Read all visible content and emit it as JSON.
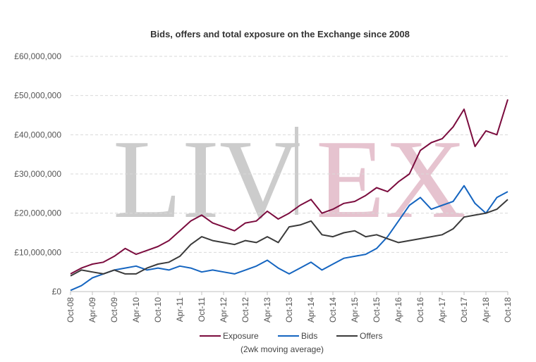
{
  "chart_data": {
    "type": "line",
    "title": "Bids, offers and total exposure on the Exchange since 2008",
    "note": "(2wk moving average)",
    "watermark": {
      "left": "LIV",
      "right": "EX"
    },
    "xlabel": "",
    "ylabel": "",
    "ylim": [
      0,
      60000000
    ],
    "y_ticks": [
      "£0",
      "£10,000,000",
      "£20,000,000",
      "£30,000,000",
      "£40,000,000",
      "£50,000,000",
      "£60,000,000"
    ],
    "x_ticks": [
      "Oct-08",
      "Apr-09",
      "Oct-09",
      "Apr-10",
      "Oct-10",
      "Apr-11",
      "Oct-11",
      "Apr-12",
      "Oct-12",
      "Apr-13",
      "Oct-13",
      "Apr-14",
      "Oct-14",
      "Apr-15",
      "Oct-15",
      "Apr-16",
      "Oct-16",
      "Apr-17",
      "Oct-17",
      "Apr-18",
      "Oct-18"
    ],
    "grid": true,
    "legend_position": "bottom",
    "x": [
      "Oct-08",
      "Jan-09",
      "Apr-09",
      "Jul-09",
      "Oct-09",
      "Jan-10",
      "Apr-10",
      "Jul-10",
      "Oct-10",
      "Jan-11",
      "Apr-11",
      "Jul-11",
      "Oct-11",
      "Jan-12",
      "Apr-12",
      "Jul-12",
      "Oct-12",
      "Jan-13",
      "Apr-13",
      "Jul-13",
      "Oct-13",
      "Jan-14",
      "Apr-14",
      "Jul-14",
      "Oct-14",
      "Jan-15",
      "Apr-15",
      "Jul-15",
      "Oct-15",
      "Jan-16",
      "Apr-16",
      "Jul-16",
      "Oct-16",
      "Jan-17",
      "Apr-17",
      "Jul-17",
      "Oct-17",
      "Jan-18",
      "Apr-18",
      "Jul-18",
      "Oct-18"
    ],
    "series": [
      {
        "name": "Exposure",
        "color": "#7b0c3e",
        "values": [
          4500000,
          6000000,
          7000000,
          7500000,
          9000000,
          11000000,
          9500000,
          10500000,
          11500000,
          13000000,
          15500000,
          18000000,
          19500000,
          17500000,
          16500000,
          15500000,
          17500000,
          18000000,
          20500000,
          18500000,
          20000000,
          22000000,
          23500000,
          20000000,
          21000000,
          22500000,
          23000000,
          24500000,
          26500000,
          25500000,
          28000000,
          30000000,
          36000000,
          38000000,
          39000000,
          42000000,
          46500000,
          37000000,
          41000000,
          40000000,
          49000000
        ]
      },
      {
        "name": "Bids",
        "color": "#1565c0",
        "values": [
          300000,
          1500000,
          3500000,
          4500000,
          5500000,
          6000000,
          6500000,
          5500000,
          6000000,
          5500000,
          6500000,
          6000000,
          5000000,
          5500000,
          5000000,
          4500000,
          5500000,
          6500000,
          8000000,
          6000000,
          4500000,
          6000000,
          7500000,
          5500000,
          7000000,
          8500000,
          9000000,
          9500000,
          11000000,
          14000000,
          18000000,
          22000000,
          24000000,
          21000000,
          22000000,
          23000000,
          27000000,
          22500000,
          20000000,
          24000000,
          25500000
        ]
      },
      {
        "name": "Offers",
        "color": "#3a3a3a",
        "values": [
          4000000,
          5500000,
          5000000,
          4500000,
          5500000,
          4500000,
          4500000,
          6000000,
          7000000,
          7500000,
          9000000,
          12000000,
          14000000,
          13000000,
          12500000,
          12000000,
          13000000,
          12500000,
          14000000,
          12500000,
          16500000,
          17000000,
          18000000,
          14500000,
          14000000,
          15000000,
          15500000,
          14000000,
          14500000,
          13500000,
          12500000,
          13000000,
          13500000,
          14000000,
          14500000,
          16000000,
          19000000,
          19500000,
          20000000,
          21000000,
          23500000
        ]
      }
    ]
  }
}
